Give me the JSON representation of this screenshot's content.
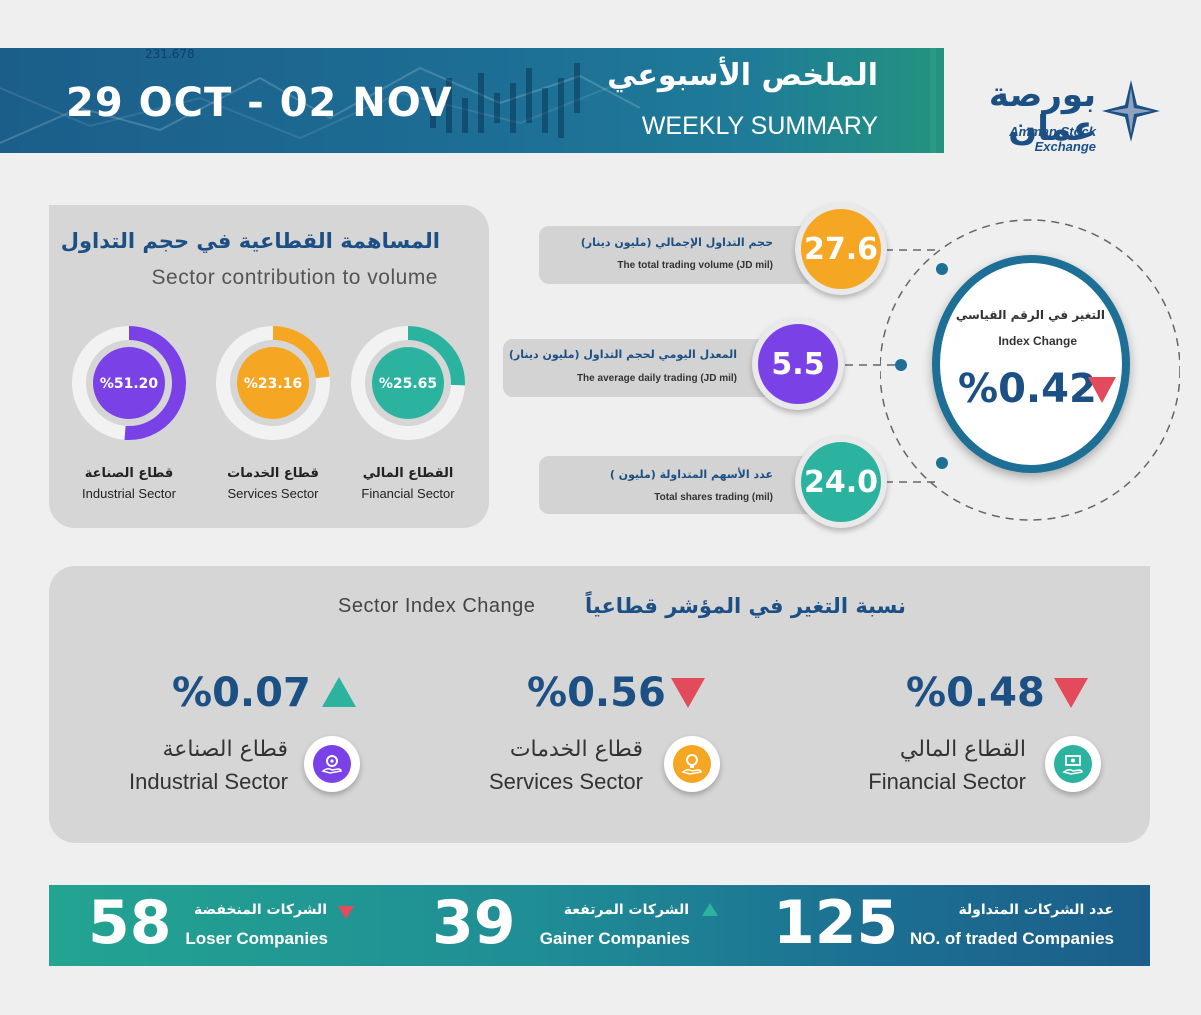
{
  "header": {
    "date_range": "29 OCT - 02 NOV",
    "title_ar": "الملخص الأسبوعي",
    "title_en": "WEEKLY SUMMARY",
    "bg_ticker": "231.678",
    "logo_ar": "بورصة عمان",
    "logo_en": "Amman Stock Exchange"
  },
  "contribution": {
    "title_ar": "المساهمة القطاعية في حجم التداول",
    "title_en": "Sector contribution to volume",
    "sectors": [
      {
        "value_text": "%51.20",
        "share": 51.2,
        "color": "#7a42e6",
        "name_ar": "قطاع الصناعة",
        "name_en": "Industrial Sector"
      },
      {
        "value_text": "%23.16",
        "share": 23.16,
        "color": "#f5a623",
        "name_ar": "قطاع الخدمات",
        "name_en": "Services Sector"
      },
      {
        "value_text": "%25.65",
        "share": 25.65,
        "color": "#2bb3a0",
        "name_ar": "القطاع المالي",
        "name_en": "Financial Sector"
      }
    ]
  },
  "stats": [
    {
      "label_ar": "حجم التداول الإجمالي (مليون دينار)",
      "label_en": "The total trading volume (JD mil)",
      "value": "27.6",
      "color": "#f5a623"
    },
    {
      "label_ar": "المعدل اليومي لحجم التداول (مليون دينار)",
      "label_en": "The average daily trading (JD mil)",
      "value": "5.5",
      "color": "#7a42e6"
    },
    {
      "label_ar": "عدد الأسهم المتداولة (مليون )",
      "label_en": "Total shares trading (mil)",
      "value": "24.0",
      "color": "#2bb3a0"
    }
  ],
  "index_change": {
    "label_ar": "التغير في الرقم القياسي",
    "label_en": "Index Change",
    "value": "%0.42",
    "direction": "down",
    "color": "#e34b5c"
  },
  "sector_index": {
    "title_en": "Sector Index Change",
    "title_ar": "نسبة التغير في المؤشر قطاعياً",
    "items": [
      {
        "value": "%0.07",
        "direction": "up",
        "name_ar": "قطاع الصناعة",
        "name_en": "Industrial Sector",
        "icon": "gear-hand-icon",
        "color": "#7a42e6"
      },
      {
        "value": "%0.56",
        "direction": "down",
        "name_ar": "قطاع الخدمات",
        "name_en": "Services Sector",
        "icon": "lightbulb-hand-icon",
        "color": "#f5a623"
      },
      {
        "value": "%0.48",
        "direction": "down",
        "name_ar": "القطاع المالي",
        "name_en": "Financial Sector",
        "icon": "money-hand-icon",
        "color": "#2bb3a0"
      }
    ]
  },
  "companies": {
    "losers": {
      "value": "58",
      "label_ar": "الشركات المنخفضة",
      "label_en": "Loser Companies"
    },
    "gainers": {
      "value": "39",
      "label_ar": "الشركات المرتفعة",
      "label_en": "Gainer Companies"
    },
    "traded": {
      "value": "125",
      "label_ar": "عدد الشركات المتداولة",
      "label_en": "NO. of traded Companies"
    }
  },
  "colors": {
    "up": "#2bb3a0",
    "down": "#e34b5c",
    "brand": "#1c4f84"
  }
}
